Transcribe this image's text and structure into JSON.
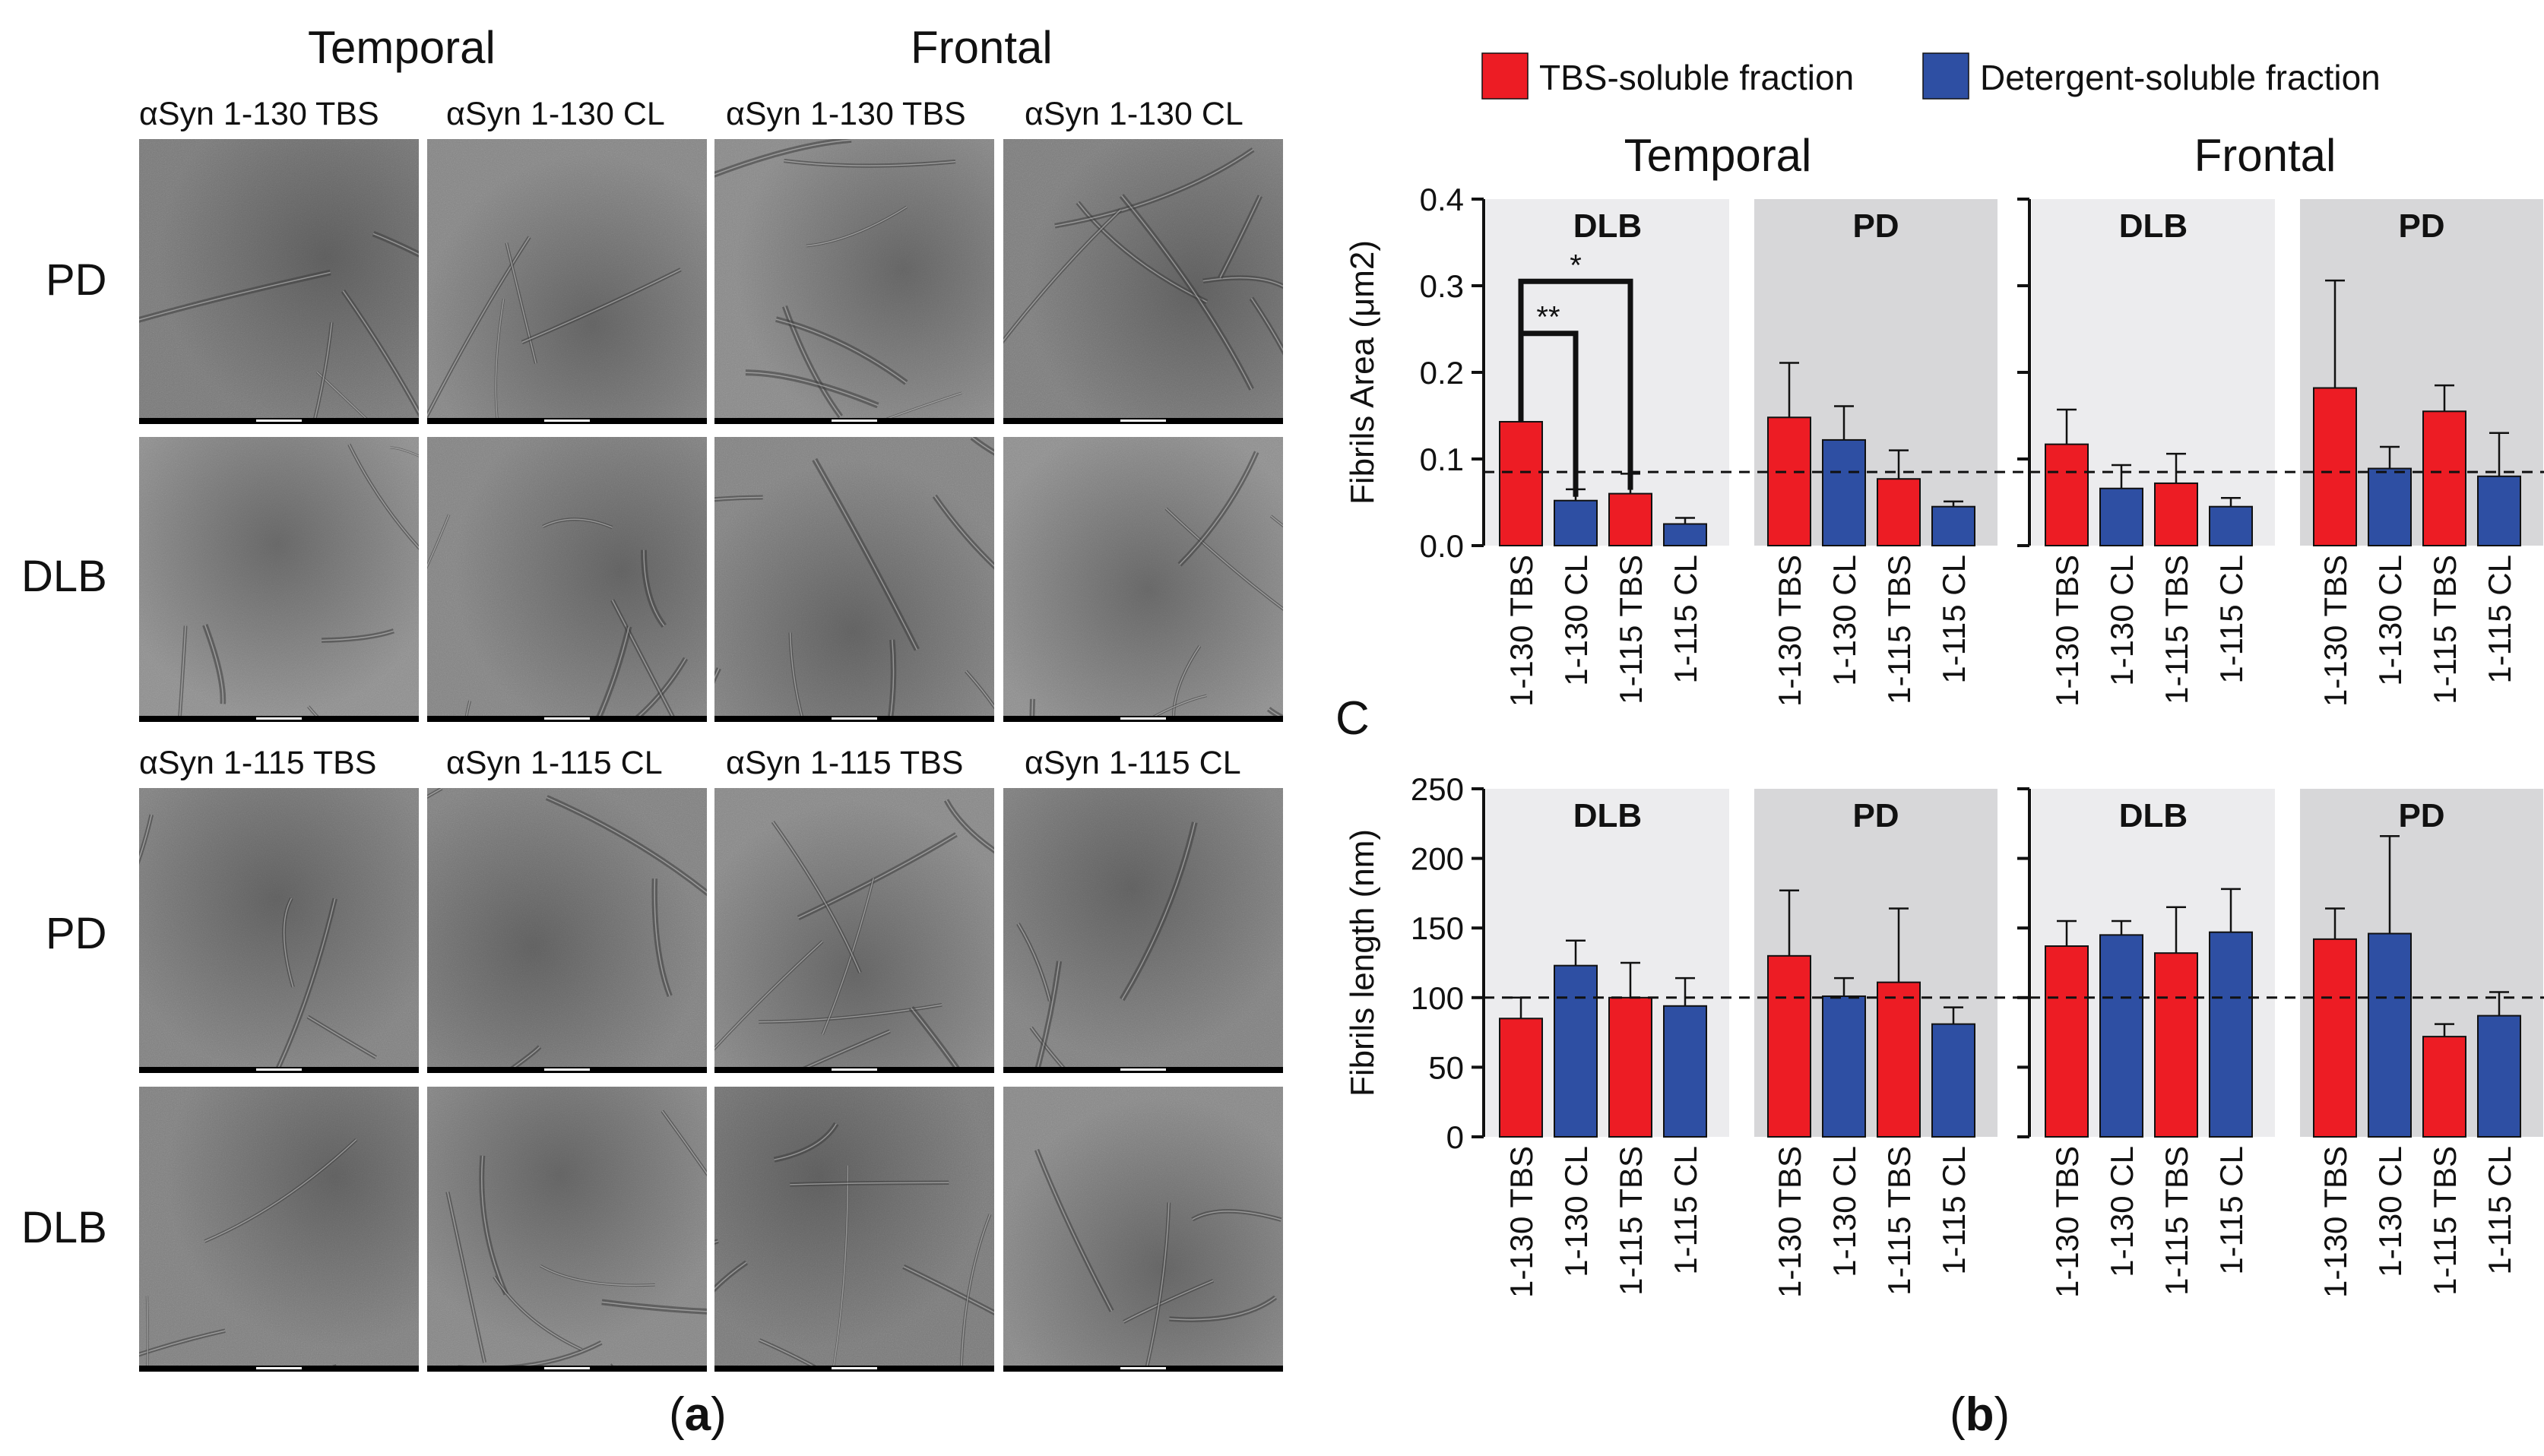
{
  "panel_a": {
    "col_groups": [
      "Temporal",
      "Frontal"
    ],
    "top_subheaders": [
      "αSyn 1-130 TBS",
      "αSyn 1-130 CL",
      "αSyn 1-130 TBS",
      "αSyn 1-130 CL"
    ],
    "bottom_subheaders": [
      "αSyn 1-115 TBS",
      "αSyn 1-115 CL",
      "αSyn 1-115 TBS",
      "αSyn 1-115 CL"
    ],
    "row_labels": [
      "PD",
      "DLB",
      "PD",
      "DLB"
    ],
    "letter_open": "(",
    "letter": "a",
    "letter_close": ")"
  },
  "panel_b": {
    "letter_open": "(",
    "letter": "b",
    "letter_close": ")",
    "c_label": "C"
  },
  "legend": [
    {
      "label": "TBS-soluble fraction",
      "color": "#ed1c24"
    },
    {
      "label": "Detergent-soluble fraction",
      "color": "#2e4fa3"
    }
  ],
  "colors": {
    "tbs": "#ed1c24",
    "cl": "#2e4fa3",
    "dlb_bg": "#ececee",
    "pd_bg": "#d7d7d9"
  },
  "chart_data": [
    {
      "type": "bar",
      "title": "Temporal",
      "ylabel": "Fibrils Area (μm2)",
      "ylim": [
        0,
        0.4
      ],
      "yticks": [
        "0.0",
        "0.1",
        "0.2",
        "0.3",
        "0.4"
      ],
      "ytick_values": [
        0,
        0.1,
        0.2,
        0.3,
        0.4
      ],
      "reference_line": 0.085,
      "groups": [
        {
          "name": "DLB",
          "categories": [
            "1-130 TBS",
            "1-130 CL",
            "1-115 TBS",
            "1-115 CL"
          ],
          "values": [
            0.143,
            0.052,
            0.06,
            0.025
          ],
          "errors": [
            0,
            0.013,
            0.023,
            0.007
          ]
        },
        {
          "name": "PD",
          "categories": [
            "1-130 TBS",
            "1-130 CL",
            "1-115 TBS",
            "1-115 CL"
          ],
          "values": [
            0.148,
            0.122,
            0.077,
            0.045
          ],
          "errors": [
            0.063,
            0.039,
            0.033,
            0.006
          ]
        }
      ],
      "significance": [
        {
          "from": "1-130 TBS",
          "to": "1-130 CL",
          "label": "**"
        },
        {
          "from": "1-130 TBS",
          "to": "1-115 TBS",
          "label": "*"
        }
      ]
    },
    {
      "type": "bar",
      "title": "Frontal",
      "ylabel": "",
      "ylim": [
        0,
        0.4
      ],
      "yticks": [],
      "ytick_values": [
        0,
        0.1,
        0.2,
        0.3,
        0.4
      ],
      "reference_line": 0.085,
      "groups": [
        {
          "name": "DLB",
          "categories": [
            "1-130 TBS",
            "1-130 CL",
            "1-115 TBS",
            "1-115 CL"
          ],
          "values": [
            0.117,
            0.066,
            0.072,
            0.045
          ],
          "errors": [
            0.04,
            0.027,
            0.034,
            0.01
          ]
        },
        {
          "name": "PD",
          "categories": [
            "1-130 TBS",
            "1-130 CL",
            "1-115 TBS",
            "1-115 CL"
          ],
          "values": [
            0.182,
            0.089,
            0.155,
            0.08
          ],
          "errors": [
            0.124,
            0.025,
            0.03,
            0.05
          ]
        }
      ]
    },
    {
      "type": "bar",
      "title": "",
      "ylabel": "Fibrils length (nm)",
      "ylim": [
        0,
        250
      ],
      "yticks": [
        "0",
        "50",
        "100",
        "150",
        "200",
        "250"
      ],
      "ytick_values": [
        0,
        50,
        100,
        150,
        200,
        250
      ],
      "reference_line": 100,
      "groups": [
        {
          "name": "DLB",
          "categories": [
            "1-130 TBS",
            "1-130 CL",
            "1-115 TBS",
            "1-115 CL"
          ],
          "values": [
            85,
            123,
            100,
            94
          ],
          "errors": [
            15,
            18,
            25,
            20
          ]
        },
        {
          "name": "PD",
          "categories": [
            "1-130 TBS",
            "1-130 CL",
            "1-115 TBS",
            "1-115 CL"
          ],
          "values": [
            130,
            101,
            111,
            81
          ],
          "errors": [
            47,
            13,
            53,
            12
          ]
        }
      ]
    },
    {
      "type": "bar",
      "title": "",
      "ylabel": "",
      "ylim": [
        0,
        250
      ],
      "yticks": [],
      "ytick_values": [
        0,
        50,
        100,
        150,
        200,
        250
      ],
      "reference_line": 100,
      "groups": [
        {
          "name": "DLB",
          "categories": [
            "1-130 TBS",
            "1-130 CL",
            "1-115 TBS",
            "1-115 CL"
          ],
          "values": [
            137,
            145,
            132,
            147
          ],
          "errors": [
            18,
            10,
            33,
            31
          ]
        },
        {
          "name": "PD",
          "categories": [
            "1-130 TBS",
            "1-130 CL",
            "1-115 TBS",
            "1-115 CL"
          ],
          "values": [
            142,
            146,
            72,
            87
          ],
          "errors": [
            22,
            70,
            9,
            17
          ]
        }
      ]
    }
  ]
}
